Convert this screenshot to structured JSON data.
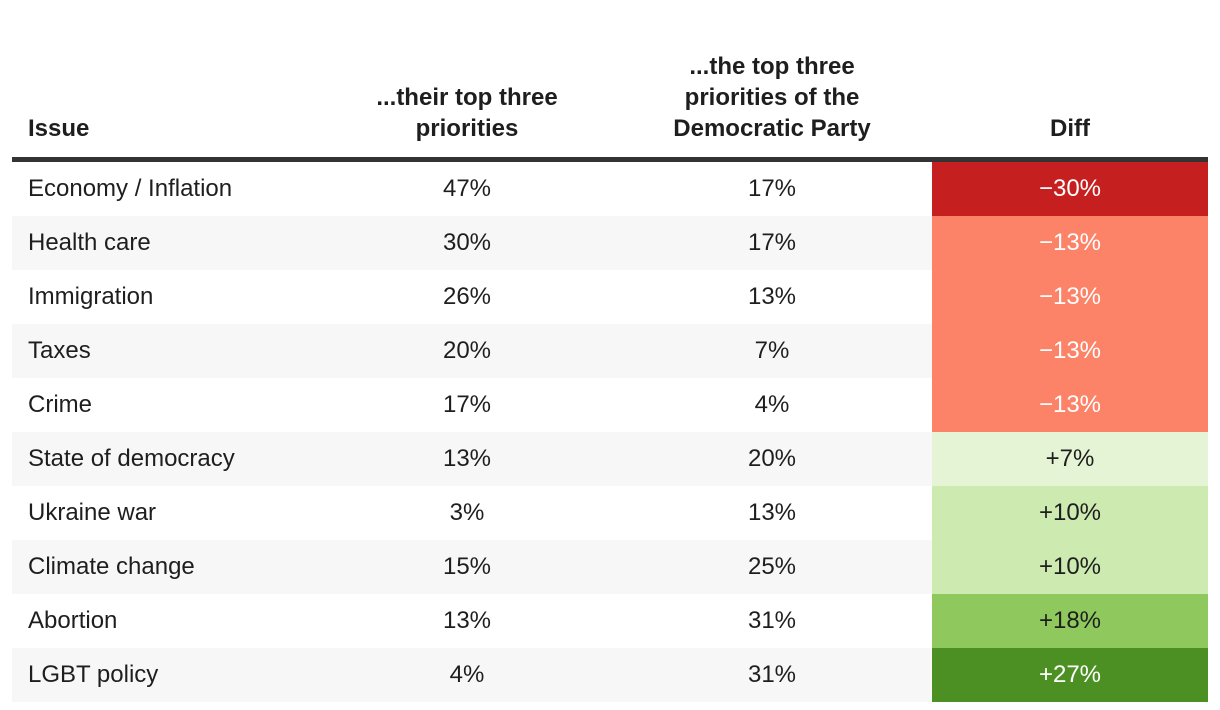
{
  "table": {
    "columns": [
      {
        "label": "Issue"
      },
      {
        "label": "...their top three priorities"
      },
      {
        "label": "...the top three priorities of the Democratic Party"
      },
      {
        "label": "Diff"
      }
    ],
    "rows": [
      {
        "issue": "Economy / Inflation",
        "self": "47%",
        "dem": "17%",
        "diff": "−30%",
        "diff_bg": "#c51f1f",
        "diff_fg": "#ffffff"
      },
      {
        "issue": "Health care",
        "self": "30%",
        "dem": "17%",
        "diff": "−13%",
        "diff_bg": "#fc8268",
        "diff_fg": "#ffffff"
      },
      {
        "issue": "Immigration",
        "self": "26%",
        "dem": "13%",
        "diff": "−13%",
        "diff_bg": "#fc8268",
        "diff_fg": "#ffffff"
      },
      {
        "issue": "Taxes",
        "self": "20%",
        "dem": "7%",
        "diff": "−13%",
        "diff_bg": "#fc8268",
        "diff_fg": "#ffffff"
      },
      {
        "issue": "Crime",
        "self": "17%",
        "dem": "4%",
        "diff": "−13%",
        "diff_bg": "#fc8268",
        "diff_fg": "#ffffff"
      },
      {
        "issue": "State of democracy",
        "self": "13%",
        "dem": "20%",
        "diff": "+7%",
        "diff_bg": "#e6f4d6",
        "diff_fg": "#1e1e1e"
      },
      {
        "issue": "Ukraine war",
        "self": "3%",
        "dem": "13%",
        "diff": "+10%",
        "diff_bg": "#cdeab0",
        "diff_fg": "#1e1e1e"
      },
      {
        "issue": "Climate change",
        "self": "15%",
        "dem": "25%",
        "diff": "+10%",
        "diff_bg": "#cdeab0",
        "diff_fg": "#1e1e1e"
      },
      {
        "issue": "Abortion",
        "self": "13%",
        "dem": "31%",
        "diff": "+18%",
        "diff_bg": "#8fc95e",
        "diff_fg": "#1e1e1e"
      },
      {
        "issue": "LGBT policy",
        "self": "4%",
        "dem": "31%",
        "diff": "+27%",
        "diff_bg": "#4c9023",
        "diff_fg": "#ffffff"
      }
    ]
  },
  "colors": {
    "header_rule": "#333333",
    "row_stripe": "#f7f7f7",
    "text": "#1e1e1e",
    "diff_strong_negative": "#c51f1f",
    "diff_negative": "#fc8268",
    "diff_slight_positive": "#e6f4d6",
    "diff_positive": "#cdeab0",
    "diff_strong_positive": "#8fc95e",
    "diff_strongest_positive": "#4c9023"
  },
  "chart_data": {
    "type": "table",
    "title": "",
    "columns": [
      "Issue",
      "...their top three priorities",
      "...the top three priorities of the Democratic Party",
      "Diff"
    ],
    "categories": [
      "Economy / Inflation",
      "Health care",
      "Immigration",
      "Taxes",
      "Crime",
      "State of democracy",
      "Ukraine war",
      "Climate change",
      "Abortion",
      "LGBT policy"
    ],
    "series": [
      {
        "name": "...their top three priorities",
        "values": [
          47,
          30,
          26,
          20,
          17,
          13,
          3,
          15,
          13,
          4
        ]
      },
      {
        "name": "...the top three priorities of the Democratic Party",
        "values": [
          17,
          17,
          13,
          7,
          4,
          20,
          13,
          25,
          31,
          31
        ]
      },
      {
        "name": "Diff",
        "values": [
          -30,
          -13,
          -13,
          -13,
          -13,
          7,
          10,
          10,
          18,
          27
        ]
      }
    ]
  }
}
